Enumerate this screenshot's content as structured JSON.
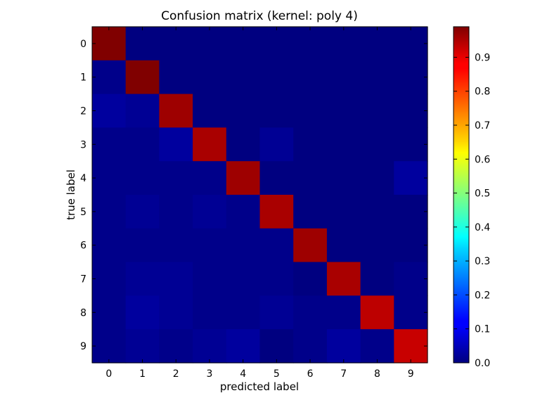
{
  "chart_data": {
    "type": "heatmap",
    "title": "Confusion matrix (kernel: poly 4)",
    "xlabel": "predicted label",
    "ylabel": "true label",
    "x_categories": [
      "0",
      "1",
      "2",
      "3",
      "4",
      "5",
      "6",
      "7",
      "8",
      "9"
    ],
    "y_categories": [
      "0",
      "1",
      "2",
      "3",
      "4",
      "5",
      "6",
      "7",
      "8",
      "9"
    ],
    "values": [
      [
        0.99,
        0.0,
        0.0,
        0.0,
        0.0,
        0.0,
        0.0,
        0.0,
        0.0,
        0.0
      ],
      [
        0.01,
        0.99,
        0.0,
        0.0,
        0.0,
        0.0,
        0.0,
        0.0,
        0.0,
        0.0
      ],
      [
        0.03,
        0.02,
        0.96,
        0.0,
        0.0,
        0.0,
        0.0,
        0.0,
        0.0,
        0.0
      ],
      [
        0.01,
        0.01,
        0.03,
        0.95,
        0.0,
        0.02,
        0.0,
        0.0,
        0.0,
        0.0
      ],
      [
        0.01,
        0.01,
        0.01,
        0.01,
        0.96,
        0.0,
        0.0,
        0.0,
        0.0,
        0.03
      ],
      [
        0.01,
        0.02,
        0.01,
        0.02,
        0.01,
        0.95,
        0.0,
        0.0,
        0.0,
        0.0
      ],
      [
        0.01,
        0.01,
        0.01,
        0.01,
        0.01,
        0.01,
        0.96,
        0.0,
        0.0,
        0.0
      ],
      [
        0.01,
        0.02,
        0.02,
        0.01,
        0.01,
        0.01,
        0.0,
        0.95,
        0.0,
        0.01
      ],
      [
        0.01,
        0.03,
        0.02,
        0.01,
        0.01,
        0.02,
        0.01,
        0.01,
        0.93,
        0.01
      ],
      [
        0.01,
        0.02,
        0.01,
        0.02,
        0.03,
        0.0,
        0.01,
        0.03,
        0.01,
        0.92
      ]
    ],
    "colormap": "jet",
    "colorbar": {
      "range": [
        0.0,
        0.99
      ],
      "ticks": [
        0.0,
        0.1,
        0.2,
        0.3,
        0.4,
        0.5,
        0.6,
        0.7,
        0.8,
        0.9
      ],
      "tick_labels": [
        "0.0",
        "0.1",
        "0.2",
        "0.3",
        "0.4",
        "0.5",
        "0.6",
        "0.7",
        "0.8",
        "0.9"
      ]
    },
    "grid": false
  }
}
